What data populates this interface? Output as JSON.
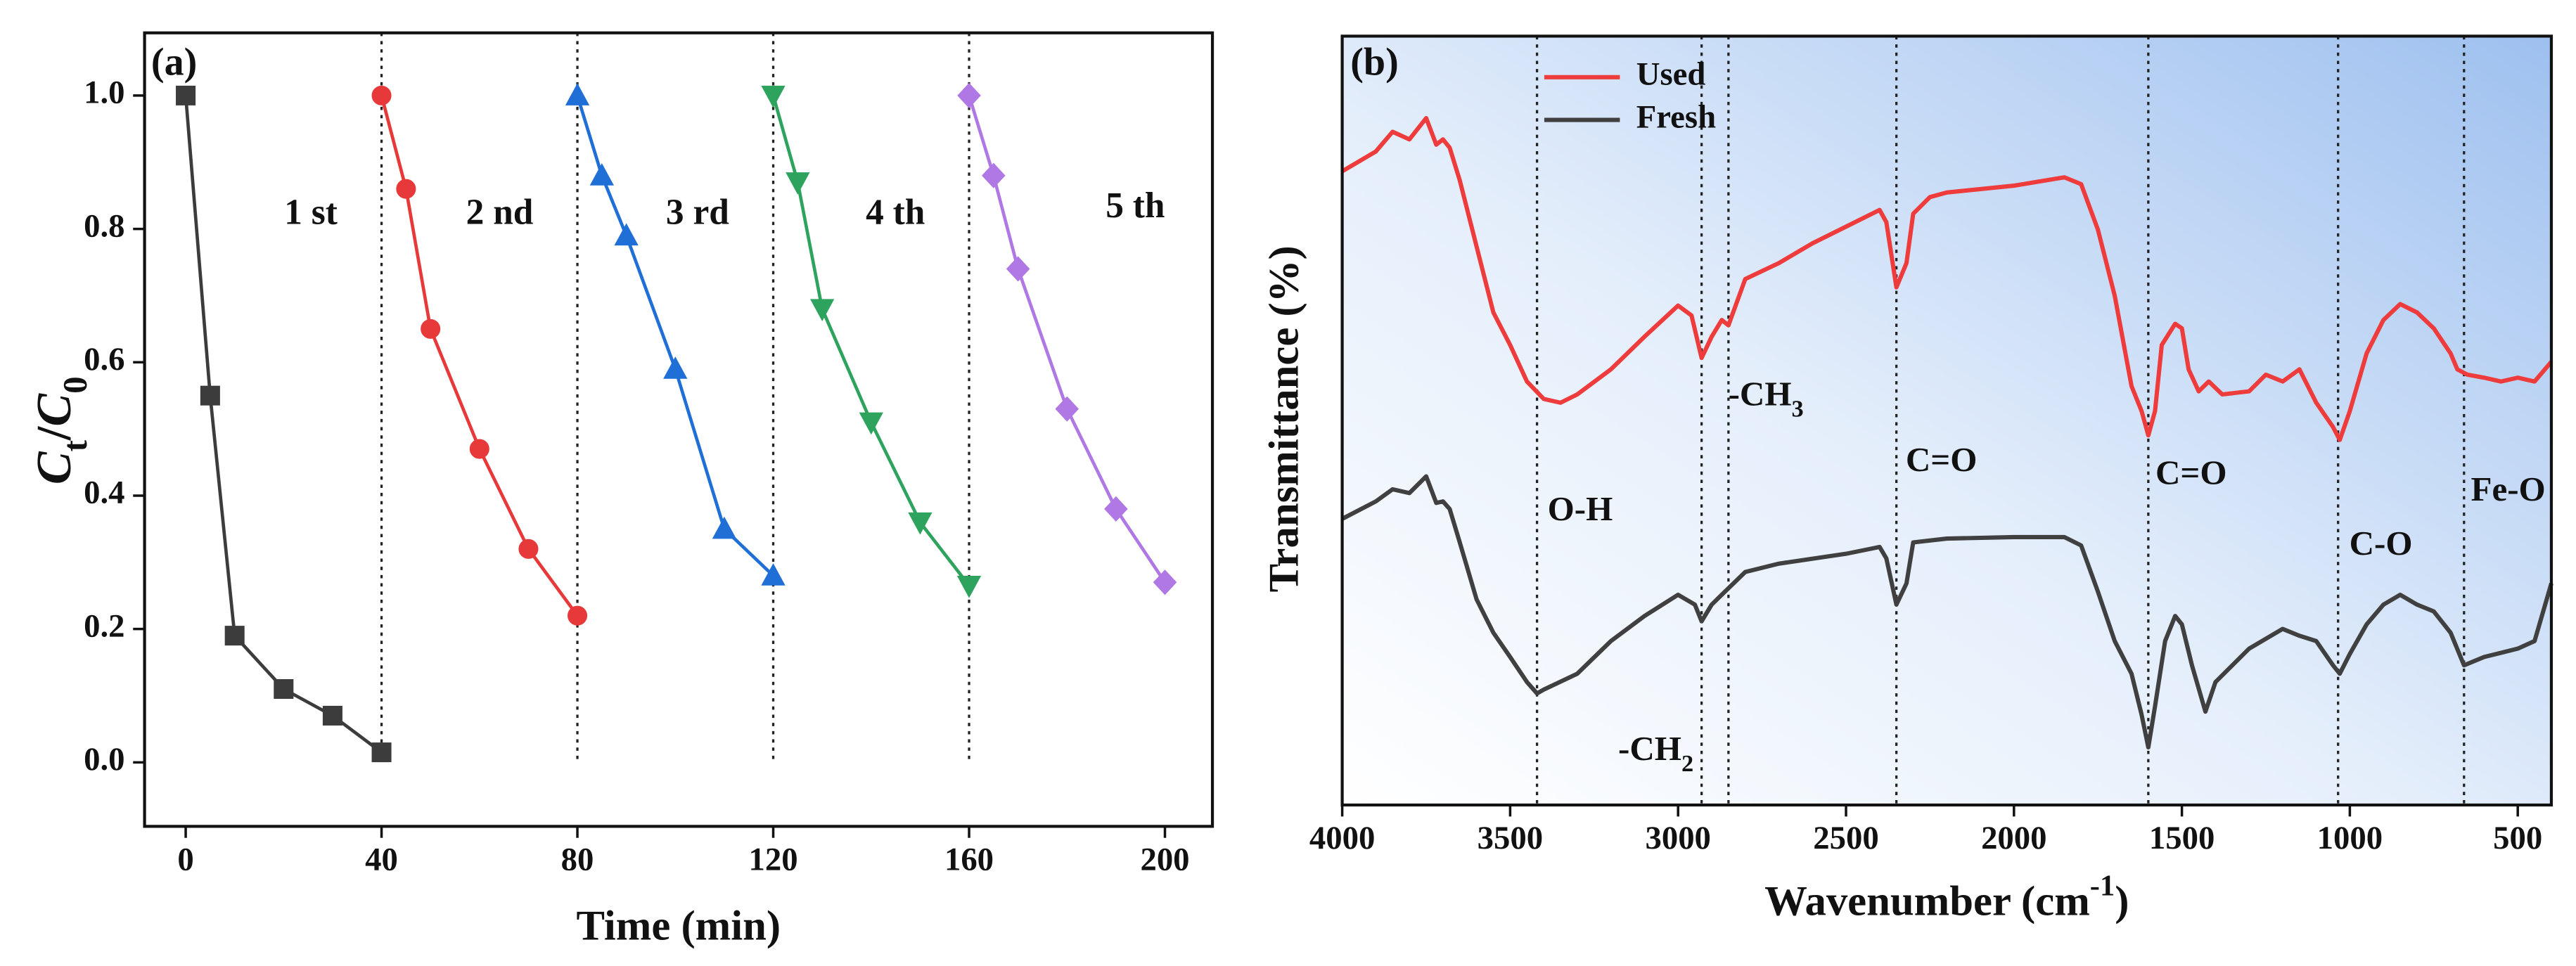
{
  "chart_data": [
    {
      "type": "line",
      "title": "(a)",
      "xlabel": [
        "Time (min)"
      ],
      "ylabel": [
        "C",
        "t",
        "/",
        "C",
        "0"
      ],
      "xlim": [
        -8.4,
        209.7
      ],
      "ylim": [
        -0.096,
        1.094
      ],
      "xticks": [
        0,
        40,
        80,
        120,
        160,
        200
      ],
      "yticks": [
        {
          "value": 0,
          "label": "0.0"
        },
        0.2,
        0.4,
        0.6,
        0.8,
        {
          "value": 1,
          "label": "1.0"
        }
      ],
      "vlines": [
        40,
        80,
        120,
        160
      ],
      "series": [
        {
          "name": "1 st",
          "color": "#3c3c3c",
          "marker": "square",
          "x": [
            0,
            5,
            10,
            20,
            30,
            40
          ],
          "values": [
            1.0,
            0.55,
            0.19,
            0.11,
            0.07,
            0.015
          ]
        },
        {
          "name": "2 nd",
          "color": "#e8393a",
          "marker": "circle",
          "x": [
            40,
            45,
            50,
            60,
            70,
            80
          ],
          "values": [
            1.0,
            0.86,
            0.65,
            0.47,
            0.32,
            0.22
          ]
        },
        {
          "name": "3 rd",
          "color": "#1f6fd6",
          "marker": "triangle-up",
          "x": [
            80,
            85,
            90,
            100,
            110,
            120
          ],
          "values": [
            1.0,
            0.88,
            0.79,
            0.59,
            0.35,
            0.28
          ]
        },
        {
          "name": "4 th",
          "color": "#2ea35e",
          "marker": "triangle-down",
          "x": [
            120,
            125,
            130,
            140,
            150,
            160
          ],
          "values": [
            1.0,
            0.87,
            0.68,
            0.51,
            0.36,
            0.265
          ]
        },
        {
          "name": "5 th",
          "color": "#b078e4",
          "marker": "diamond",
          "x": [
            160,
            165,
            170,
            180,
            190,
            200
          ],
          "values": [
            1.0,
            0.88,
            0.74,
            0.53,
            0.38,
            0.27
          ]
        }
      ]
    },
    {
      "type": "line",
      "title": "(b)",
      "xlabel": [
        "Wavenumber (cm",
        "-1",
        ")"
      ],
      "ylabel": [
        "Transmittance (%)"
      ],
      "xlim": [
        4000,
        400
      ],
      "ylim": [
        0,
        101.3
      ],
      "xticks": [
        4000,
        3500,
        3000,
        2500,
        2000,
        1500,
        1000,
        500
      ],
      "vlines": [
        3420,
        2930,
        2850,
        2350,
        1600,
        1035,
        660
      ],
      "legend": "upper left",
      "annotations": [
        [
          "O-H"
        ],
        [
          "-CH",
          "3"
        ],
        [
          "-CH",
          "2"
        ],
        [
          "C=O"
        ],
        [
          "C=O"
        ],
        [
          "C-O"
        ],
        [
          "Fe-O"
        ]
      ],
      "series": [
        {
          "name": "Used",
          "color": "#ee3b3b",
          "x": [
            4000,
            3900,
            3850,
            3800,
            3750,
            3720,
            3700,
            3680,
            3650,
            3600,
            3550,
            3500,
            3450,
            3400,
            3350,
            3300,
            3200,
            3100,
            3000,
            2960,
            2930,
            2900,
            2870,
            2850,
            2800,
            2700,
            2600,
            2500,
            2400,
            2380,
            2350,
            2320,
            2300,
            2250,
            2200,
            2000,
            1850,
            1800,
            1750,
            1700,
            1650,
            1620,
            1600,
            1580,
            1560,
            1520,
            1500,
            1480,
            1450,
            1420,
            1380,
            1300,
            1250,
            1200,
            1150,
            1100,
            1050,
            1030,
            1000,
            950,
            900,
            850,
            800,
            750,
            700,
            680,
            650,
            600,
            550,
            500,
            450,
            400
          ],
          "values": [
            83.5,
            86.1,
            88.7,
            87.7,
            90.5,
            87.0,
            87.7,
            86.6,
            82.3,
            73.6,
            64.9,
            60.6,
            55.8,
            53.5,
            53.0,
            54.1,
            57.4,
            61.7,
            65.8,
            64.5,
            58.9,
            61.7,
            63.9,
            63.2,
            69.3,
            71.4,
            74.0,
            76.2,
            78.4,
            76.8,
            68.2,
            71.4,
            77.9,
            80.1,
            80.7,
            81.6,
            82.7,
            81.8,
            75.8,
            67.1,
            55.2,
            51.9,
            48.7,
            51.9,
            60.6,
            63.4,
            62.8,
            57.4,
            54.5,
            55.8,
            54.1,
            54.5,
            56.7,
            55.8,
            57.4,
            53.0,
            49.8,
            48.1,
            51.9,
            59.5,
            63.9,
            66.0,
            64.9,
            62.8,
            59.5,
            57.4,
            56.7,
            56.3,
            55.8,
            56.3,
            55.8,
            58.4
          ]
        },
        {
          "name": "Fresh",
          "color": "#404040",
          "x": [
            4000,
            3900,
            3850,
            3800,
            3750,
            3720,
            3700,
            3680,
            3650,
            3600,
            3550,
            3500,
            3450,
            3420,
            3400,
            3300,
            3200,
            3100,
            3000,
            2950,
            2930,
            2900,
            2870,
            2800,
            2700,
            2500,
            2400,
            2380,
            2350,
            2320,
            2300,
            2200,
            2000,
            1850,
            1800,
            1750,
            1700,
            1650,
            1620,
            1600,
            1580,
            1550,
            1520,
            1500,
            1470,
            1430,
            1400,
            1350,
            1300,
            1200,
            1150,
            1100,
            1050,
            1030,
            1000,
            950,
            900,
            850,
            800,
            750,
            700,
            660,
            600,
            500,
            450,
            400
          ],
          "values": [
            37.7,
            40.0,
            41.6,
            41.1,
            43.3,
            39.8,
            40.0,
            39.0,
            34.6,
            27.1,
            22.7,
            19.5,
            16.2,
            14.7,
            15.2,
            17.3,
            21.6,
            24.9,
            27.7,
            26.4,
            24.2,
            26.4,
            27.7,
            30.7,
            31.8,
            33.1,
            34.0,
            32.5,
            26.4,
            29.2,
            34.6,
            35.1,
            35.3,
            35.3,
            34.2,
            28.1,
            21.6,
            17.3,
            11.9,
            7.6,
            13.0,
            21.6,
            24.9,
            23.8,
            18.4,
            12.3,
            16.2,
            18.4,
            20.6,
            23.2,
            22.3,
            21.6,
            18.4,
            17.3,
            19.9,
            23.8,
            26.4,
            27.7,
            26.4,
            25.5,
            22.7,
            18.4,
            19.5,
            20.6,
            21.6,
            29.2
          ]
        }
      ]
    }
  ]
}
